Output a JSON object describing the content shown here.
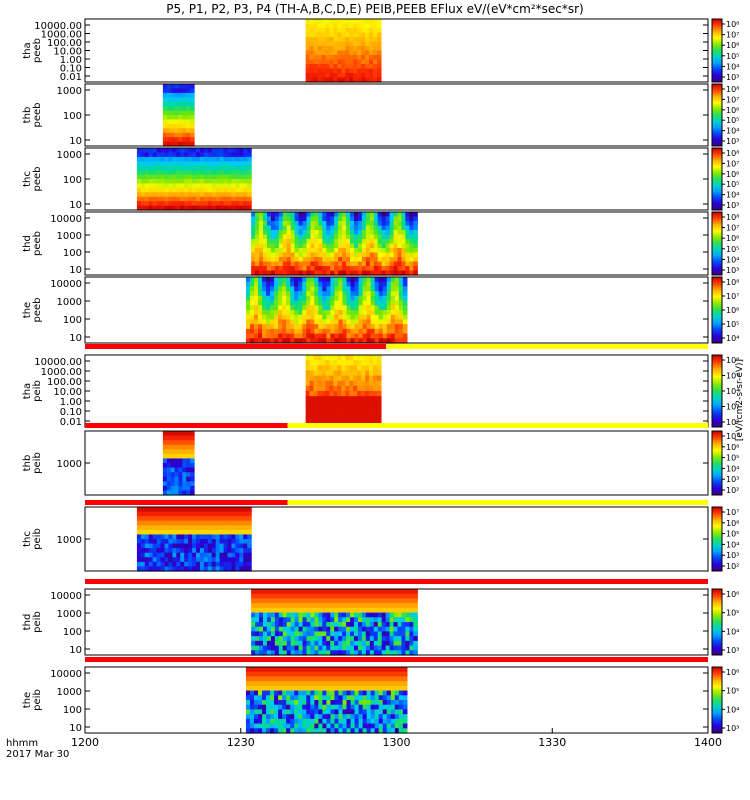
{
  "title": "P5, P1, P2, P3, P4 (TH-A,B,C,D,E) PEIB,PEEB EFlux eV/(eV*cm²*sec*sr)",
  "chart_data": {
    "type": "heatmap",
    "title": "P5, P1, P2, P3, P4 (TH-A,B,C,D,E) PEIB,PEEB EFlux eV/(eV*cm²*sec*sr)",
    "x_axis": {
      "label_line1": "hhmm",
      "label_line2": "2017 Mar 30",
      "ticks": [
        "1200",
        "1230",
        "1300",
        "1330",
        "1400"
      ],
      "range_minutes": [
        720,
        840
      ]
    },
    "colorbar_units": "[eV/(cm2-s-sr-eV)]",
    "panels": [
      {
        "id": "tha-peeb",
        "probe": "tha",
        "species": "peeb",
        "ylabel": [
          "tha",
          "peeb"
        ],
        "yticks": [
          "10000.00",
          "1000.00",
          "100.00",
          "10.00",
          "1.00",
          "0.10",
          "0.01"
        ],
        "data_start": 762.5,
        "data_end": 777.0,
        "palette": "high-flux",
        "colorbar_ticks": [
          "10⁸",
          "10⁷",
          "10⁶",
          "10⁵",
          "10⁴",
          "10³"
        ]
      },
      {
        "id": "thb-peeb",
        "probe": "thb",
        "species": "peeb",
        "ylabel": [
          "thb",
          "peeb"
        ],
        "yticks": [
          "1000",
          "100",
          "10"
        ],
        "data_start": 735.0,
        "data_end": 741.0,
        "palette": "banded",
        "colorbar_ticks": [
          "10⁸",
          "10⁷",
          "10⁶",
          "10⁵",
          "10⁴",
          "10³"
        ]
      },
      {
        "id": "thc-peeb",
        "probe": "thc",
        "species": "peeb",
        "ylabel": [
          "thc",
          "peeb"
        ],
        "yticks": [
          "1000",
          "100",
          "10"
        ],
        "data_start": 730.0,
        "data_end": 752.0,
        "palette": "banded",
        "colorbar_ticks": [
          "10⁸",
          "10⁷",
          "10⁶",
          "10⁵",
          "10⁴",
          "10³"
        ]
      },
      {
        "id": "thd-peeb",
        "probe": "thd",
        "species": "peeb",
        "ylabel": [
          "thd",
          "peeb"
        ],
        "yticks": [
          "10000",
          "1000",
          "100",
          "10"
        ],
        "data_start": 752.0,
        "data_end": 784.0,
        "palette": "dynamic",
        "colorbar_ticks": [
          "10⁸",
          "10⁷",
          "10⁶",
          "10⁵",
          "10⁴",
          "10³"
        ]
      },
      {
        "id": "the-peeb",
        "probe": "the",
        "species": "peeb",
        "ylabel": [
          "the",
          "peeb"
        ],
        "yticks": [
          "10000",
          "1000",
          "100",
          "10"
        ],
        "data_start": 751.0,
        "data_end": 782.0,
        "palette": "dynamic",
        "colorbar_ticks": [
          "10⁸",
          "10⁷",
          "10⁶",
          "10⁵",
          "10⁴"
        ]
      },
      {
        "id": "tha-peib",
        "probe": "tha",
        "species": "peib",
        "ylabel": [
          "tha",
          "peib"
        ],
        "yticks": [
          "10000.00",
          "1000.00",
          "100.00",
          "10.00",
          "1.00",
          "0.10",
          "0.01"
        ],
        "data_start": 762.5,
        "data_end": 777.0,
        "palette": "ion-high",
        "colorbar_ticks": [
          "10⁶",
          "10⁵",
          "10⁴",
          "10³",
          "10²"
        ]
      },
      {
        "id": "thb-peib",
        "probe": "thb",
        "species": "peib",
        "ylabel": [
          "thb",
          "peib"
        ],
        "yticks": [
          "1000"
        ],
        "data_start": 735.0,
        "data_end": 741.0,
        "palette": "ion-banded",
        "colorbar_ticks": [
          "10⁷",
          "10⁶",
          "10⁵",
          "10⁴",
          "10³",
          "10²"
        ]
      },
      {
        "id": "thc-peib",
        "probe": "thc",
        "species": "peib",
        "ylabel": [
          "thc",
          "peib"
        ],
        "yticks": [
          "1000"
        ],
        "data_start": 730.0,
        "data_end": 752.0,
        "palette": "ion-banded",
        "colorbar_ticks": [
          "10⁷",
          "10⁶",
          "10⁵",
          "10⁴",
          "10³",
          "10²"
        ]
      },
      {
        "id": "thd-peib",
        "probe": "thd",
        "species": "peib",
        "ylabel": [
          "thd",
          "peib"
        ],
        "yticks": [
          "10000",
          "1000",
          "100",
          "10"
        ],
        "data_start": 752.0,
        "data_end": 784.0,
        "palette": "ion-dynamic",
        "colorbar_ticks": [
          "10⁶",
          "10⁵",
          "10⁴",
          "10³"
        ]
      },
      {
        "id": "the-peib",
        "probe": "the",
        "species": "peib",
        "ylabel": [
          "the",
          "peib"
        ],
        "yticks": [
          "10000",
          "1000",
          "100",
          "10"
        ],
        "data_start": 751.0,
        "data_end": 782.0,
        "palette": "ion-dynamic",
        "colorbar_ticks": [
          "10⁶",
          "10⁵",
          "10⁴",
          "10³"
        ]
      }
    ],
    "mode_bars": [
      {
        "after_panel": 4,
        "segments": [
          {
            "start": 720,
            "end": 778,
            "color": "#ff0000"
          },
          {
            "start": 778,
            "end": 840,
            "color": "#ffff00"
          }
        ]
      },
      {
        "after_panel": 5,
        "segments": [
          {
            "start": 720,
            "end": 759,
            "color": "#ff0000"
          },
          {
            "start": 759,
            "end": 840,
            "color": "#ffff00"
          }
        ]
      },
      {
        "after_panel": 6,
        "segments": [
          {
            "start": 720,
            "end": 759,
            "color": "#ff0000"
          },
          {
            "start": 759,
            "end": 840,
            "color": "#ffff00"
          }
        ]
      },
      {
        "after_panel": 7,
        "segments": [
          {
            "start": 720,
            "end": 840,
            "color": "#ff0000"
          }
        ]
      },
      {
        "after_panel": 8,
        "segments": [
          {
            "start": 720,
            "end": 840,
            "color": "#ff0000"
          }
        ]
      }
    ]
  }
}
